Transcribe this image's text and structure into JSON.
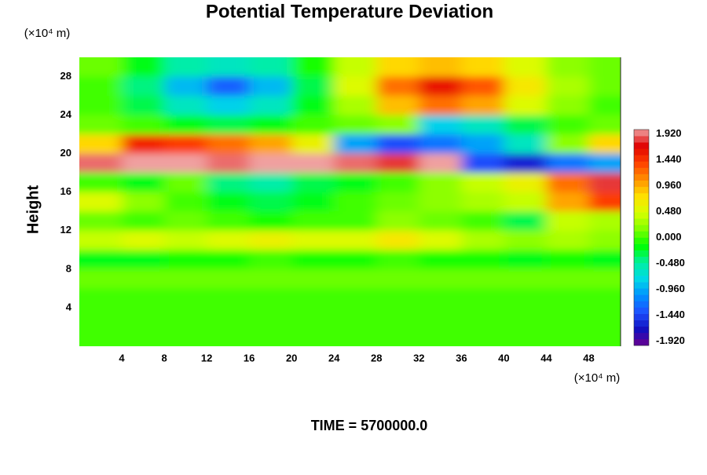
{
  "chart_data": {
    "type": "heatmap",
    "title": "Potential Temperature Deviation",
    "y_label": "Height",
    "y_unit": "(×10⁴ m)",
    "x_unit": "(×10⁴ m)",
    "footer": "TIME = 5700000.0",
    "xlim": [
      0,
      51
    ],
    "ylim": [
      0,
      30
    ],
    "xticks": [
      4,
      8,
      12,
      16,
      20,
      24,
      28,
      32,
      36,
      40,
      44,
      48
    ],
    "yticks": [
      4,
      8,
      12,
      16,
      20,
      24,
      28
    ],
    "x": [
      2,
      6,
      10,
      14,
      18,
      22,
      26,
      30,
      34,
      38,
      42,
      46,
      50
    ],
    "y": [
      29,
      27,
      25,
      23,
      21,
      19,
      17,
      15,
      13,
      11,
      9,
      7,
      5,
      3,
      1
    ],
    "z": [
      [
        0.1,
        -0.2,
        -0.5,
        -0.6,
        -0.5,
        -0.1,
        0.4,
        0.8,
        0.9,
        0.8,
        0.5,
        0.2,
        0.1
      ],
      [
        0,
        -0.4,
        -0.9,
        -1.3,
        -0.9,
        -0.3,
        0.5,
        1.2,
        1.6,
        1.3,
        0.7,
        0.3,
        0.1
      ],
      [
        0,
        -0.3,
        -0.6,
        -0.8,
        -0.6,
        -0.2,
        0.3,
        0.9,
        1.2,
        1.0,
        0.5,
        0.2,
        0
      ],
      [
        0.1,
        0,
        -0.2,
        -0.3,
        -0.2,
        0,
        0.1,
        0.2,
        -0.8,
        -0.6,
        -0.3,
        0,
        0.1
      ],
      [
        0.8,
        1.5,
        1.4,
        1.2,
        1.0,
        0.6,
        -1.0,
        -1.4,
        -1.2,
        -1.0,
        -0.6,
        0.2,
        0.8
      ],
      [
        1.9,
        2.0,
        2.0,
        1.9,
        2.0,
        2.0,
        1.9,
        1.8,
        2.0,
        -1.4,
        -1.6,
        -1.2,
        -1.0
      ],
      [
        0,
        -0.2,
        0.1,
        -0.4,
        -0.5,
        -0.3,
        -0.2,
        0,
        0.2,
        0.4,
        0.6,
        1.2,
        1.8
      ],
      [
        0.5,
        0.2,
        0,
        -0.2,
        -0.3,
        -0.2,
        0,
        0.1,
        0.2,
        0.3,
        0.4,
        1.0,
        1.4
      ],
      [
        0.1,
        0,
        0.1,
        0,
        -0.1,
        0,
        0,
        0.2,
        0.1,
        0,
        -0.3,
        0.4,
        0.3
      ],
      [
        0.4,
        0.5,
        0.4,
        0.5,
        0.6,
        0.5,
        0.5,
        0.7,
        0.5,
        0.3,
        0.2,
        0.3,
        0.2
      ],
      [
        -0.2,
        -0.2,
        -0.1,
        -0.1,
        0,
        -0.1,
        -0.1,
        0,
        -0.1,
        -0.1,
        -0.2,
        -0.1,
        -0.2
      ],
      [
        0.1,
        0.1,
        0.1,
        0.1,
        0.1,
        0.1,
        0.1,
        0.1,
        0.1,
        0.1,
        0.1,
        0.1,
        0.1
      ],
      [
        0,
        0,
        0,
        0,
        0,
        0,
        0,
        0,
        0,
        0,
        0,
        0,
        0
      ],
      [
        0,
        0,
        0,
        0,
        0,
        0,
        0,
        0,
        0,
        0,
        0,
        0,
        0
      ],
      [
        0,
        0,
        0,
        0,
        0,
        0,
        0,
        0,
        0,
        0,
        0,
        0,
        0
      ]
    ],
    "clim": [
      -2,
      2
    ],
    "colors": [
      "#6a0090",
      "#1010c0",
      "#1e50ff",
      "#0090ff",
      "#00d8e8",
      "#00f0a0",
      "#00ff00",
      "#80ff00",
      "#d8ff00",
      "#ffe000",
      "#ff9000",
      "#ff4000",
      "#e00000",
      "#f0a0a0"
    ],
    "cticks": [
      {
        "value": 1.92,
        "label": "1.920"
      },
      {
        "value": 1.44,
        "label": "1.440"
      },
      {
        "value": 0.96,
        "label": "0.960"
      },
      {
        "value": 0.48,
        "label": "0.480"
      },
      {
        "value": 0,
        "label": "0.000"
      },
      {
        "value": -0.48,
        "label": "-0.480"
      },
      {
        "value": -0.96,
        "label": "-0.960"
      },
      {
        "value": -1.44,
        "label": "-1.440"
      },
      {
        "value": -1.92,
        "label": "-1.920"
      }
    ]
  }
}
